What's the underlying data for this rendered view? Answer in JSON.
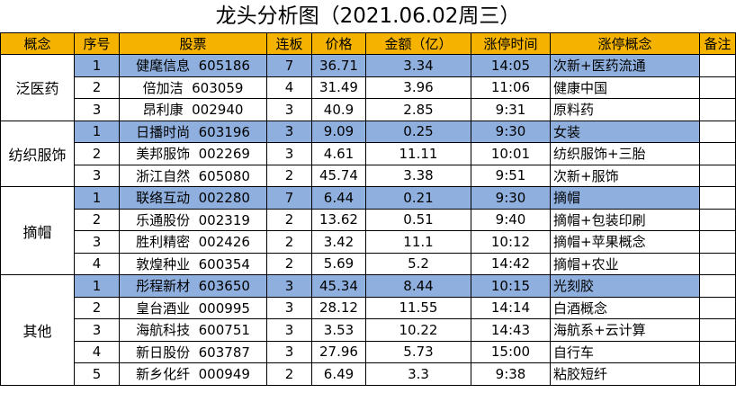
{
  "title": "龙头分析图（2021.06.02周三）",
  "headers": [
    "概念",
    "序号",
    "股票",
    "连板",
    "价格",
    "金额（亿）",
    "涨停时间",
    "涨停概念",
    "备注"
  ],
  "groups": [
    {
      "name": "泛医药",
      "rows": [
        {
          "idx": "1",
          "stock": "健麾信息",
          "code": "605186",
          "boards": "7",
          "price": "36.71",
          "amount": "3.34",
          "time": "14:05",
          "concept": "次新+医药流通",
          "hl": true
        },
        {
          "idx": "2",
          "stock": "倍加洁",
          "code": "603059",
          "boards": "4",
          "price": "31.49",
          "amount": "3.96",
          "time": "11:06",
          "concept": "健康中国",
          "hl": false
        },
        {
          "idx": "3",
          "stock": "昂利康",
          "code": "002940",
          "boards": "3",
          "price": "40.9",
          "amount": "2.85",
          "time": "9:31",
          "concept": "原料药",
          "hl": false
        }
      ]
    },
    {
      "name": "纺织服饰",
      "rows": [
        {
          "idx": "1",
          "stock": "日播时尚",
          "code": "603196",
          "boards": "3",
          "price": "9.09",
          "amount": "0.25",
          "time": "9:30",
          "concept": "女装",
          "hl": true
        },
        {
          "idx": "2",
          "stock": "美邦服饰",
          "code": "002269",
          "boards": "3",
          "price": "4.61",
          "amount": "11.11",
          "time": "10:01",
          "concept": "纺织服饰+三胎",
          "hl": false
        },
        {
          "idx": "3",
          "stock": "浙江自然",
          "code": "605080",
          "boards": "2",
          "price": "45.74",
          "amount": "3.38",
          "time": "9:51",
          "concept": "次新+服饰",
          "hl": false
        }
      ]
    },
    {
      "name": "摘帽",
      "rows": [
        {
          "idx": "1",
          "stock": "联络互动",
          "code": "002280",
          "boards": "7",
          "price": "6.44",
          "amount": "0.21",
          "time": "9:30",
          "concept": "摘帽",
          "hl": true
        },
        {
          "idx": "2",
          "stock": "乐通股份",
          "code": "002319",
          "boards": "2",
          "price": "13.62",
          "amount": "0.51",
          "time": "9:40",
          "concept": "摘帽+包装印刷",
          "hl": false
        },
        {
          "idx": "3",
          "stock": "胜利精密",
          "code": "002426",
          "boards": "2",
          "price": "3.42",
          "amount": "11.1",
          "time": "10:12",
          "concept": "摘帽+苹果概念",
          "hl": false
        },
        {
          "idx": "4",
          "stock": "敦煌种业",
          "code": "600354",
          "boards": "2",
          "price": "5.69",
          "amount": "5.2",
          "time": "14:42",
          "concept": "摘帽+农业",
          "hl": false
        }
      ]
    },
    {
      "name": "其他",
      "rows": [
        {
          "idx": "1",
          "stock": "彤程新材",
          "code": "603650",
          "boards": "3",
          "price": "45.34",
          "amount": "8.44",
          "time": "10:15",
          "concept": "光刻胶",
          "hl": true
        },
        {
          "idx": "2",
          "stock": "皇台酒业",
          "code": "000995",
          "boards": "3",
          "price": "28.12",
          "amount": "11.55",
          "time": "14:14",
          "concept": "白酒概念",
          "hl": false
        },
        {
          "idx": "3",
          "stock": "海航科技",
          "code": "600751",
          "boards": "3",
          "price": "3.53",
          "amount": "10.22",
          "time": "14:43",
          "concept": "海航系+云计算",
          "hl": false
        },
        {
          "idx": "4",
          "stock": "新日股份",
          "code": "603787",
          "boards": "3",
          "price": "27.96",
          "amount": "5.73",
          "time": "15:00",
          "concept": "自行车",
          "hl": false
        },
        {
          "idx": "5",
          "stock": "新乡化纤",
          "code": "000949",
          "boards": "2",
          "price": "6.49",
          "amount": "3.3",
          "time": "9:38",
          "concept": "粘胶短纤",
          "hl": false
        }
      ]
    }
  ],
  "colors": {
    "header_bg": "#f5b300",
    "highlight_bg": "#8fb0de"
  }
}
